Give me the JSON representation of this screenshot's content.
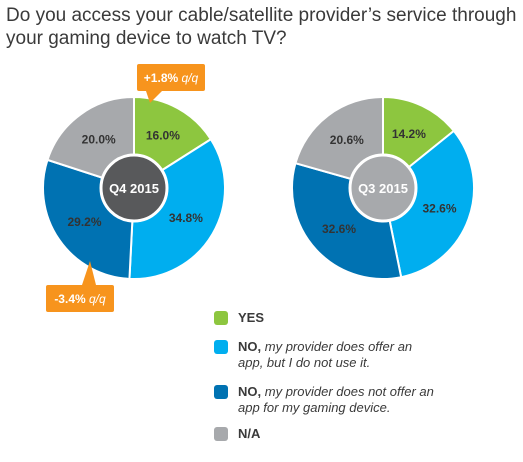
{
  "title": "Do you access your cable/satellite provider’s service through your gaming device to watch TV?",
  "colors": {
    "yes": "#8dc63f",
    "no_app": "#00aeef",
    "no_offer": "#0072b2",
    "na": "#a7a9ac",
    "callout": "#f7941d",
    "center_q4": "#58595b",
    "center_q3": "#a7a9ac"
  },
  "chart_data": [
    {
      "type": "pie",
      "center_label": "Q4 2015",
      "slices": [
        {
          "category": "yes",
          "value": 16.0,
          "label": "16.0%"
        },
        {
          "category": "no_app",
          "value": 34.8,
          "label": "34.8%"
        },
        {
          "category": "no_offer",
          "value": 29.2,
          "label": "29.2%"
        },
        {
          "category": "na",
          "value": 20.0,
          "label": "20.0%"
        }
      ],
      "annotations": [
        {
          "category": "yes",
          "value": "+1.8%",
          "suffix": "q/q"
        },
        {
          "category": "no_offer",
          "value": "-3.4%",
          "suffix": "q/q"
        }
      ]
    },
    {
      "type": "pie",
      "center_label": "Q3 2015",
      "slices": [
        {
          "category": "yes",
          "value": 14.2,
          "label": "14.2%"
        },
        {
          "category": "no_app",
          "value": 32.6,
          "label": "32.6%"
        },
        {
          "category": "no_offer",
          "value": 32.6,
          "label": "32.6%"
        },
        {
          "category": "na",
          "value": 20.6,
          "label": "20.6%"
        }
      ]
    }
  ],
  "legend": [
    {
      "category": "yes",
      "main": "YES",
      "sub": ""
    },
    {
      "category": "no_app",
      "main": "NO,",
      "sub": "my provider does offer an app, but I do not use it."
    },
    {
      "category": "no_offer",
      "main": "NO,",
      "sub": "my provider does not offer an app for my gaming device."
    },
    {
      "category": "na",
      "main": "N/A",
      "sub": ""
    }
  ]
}
